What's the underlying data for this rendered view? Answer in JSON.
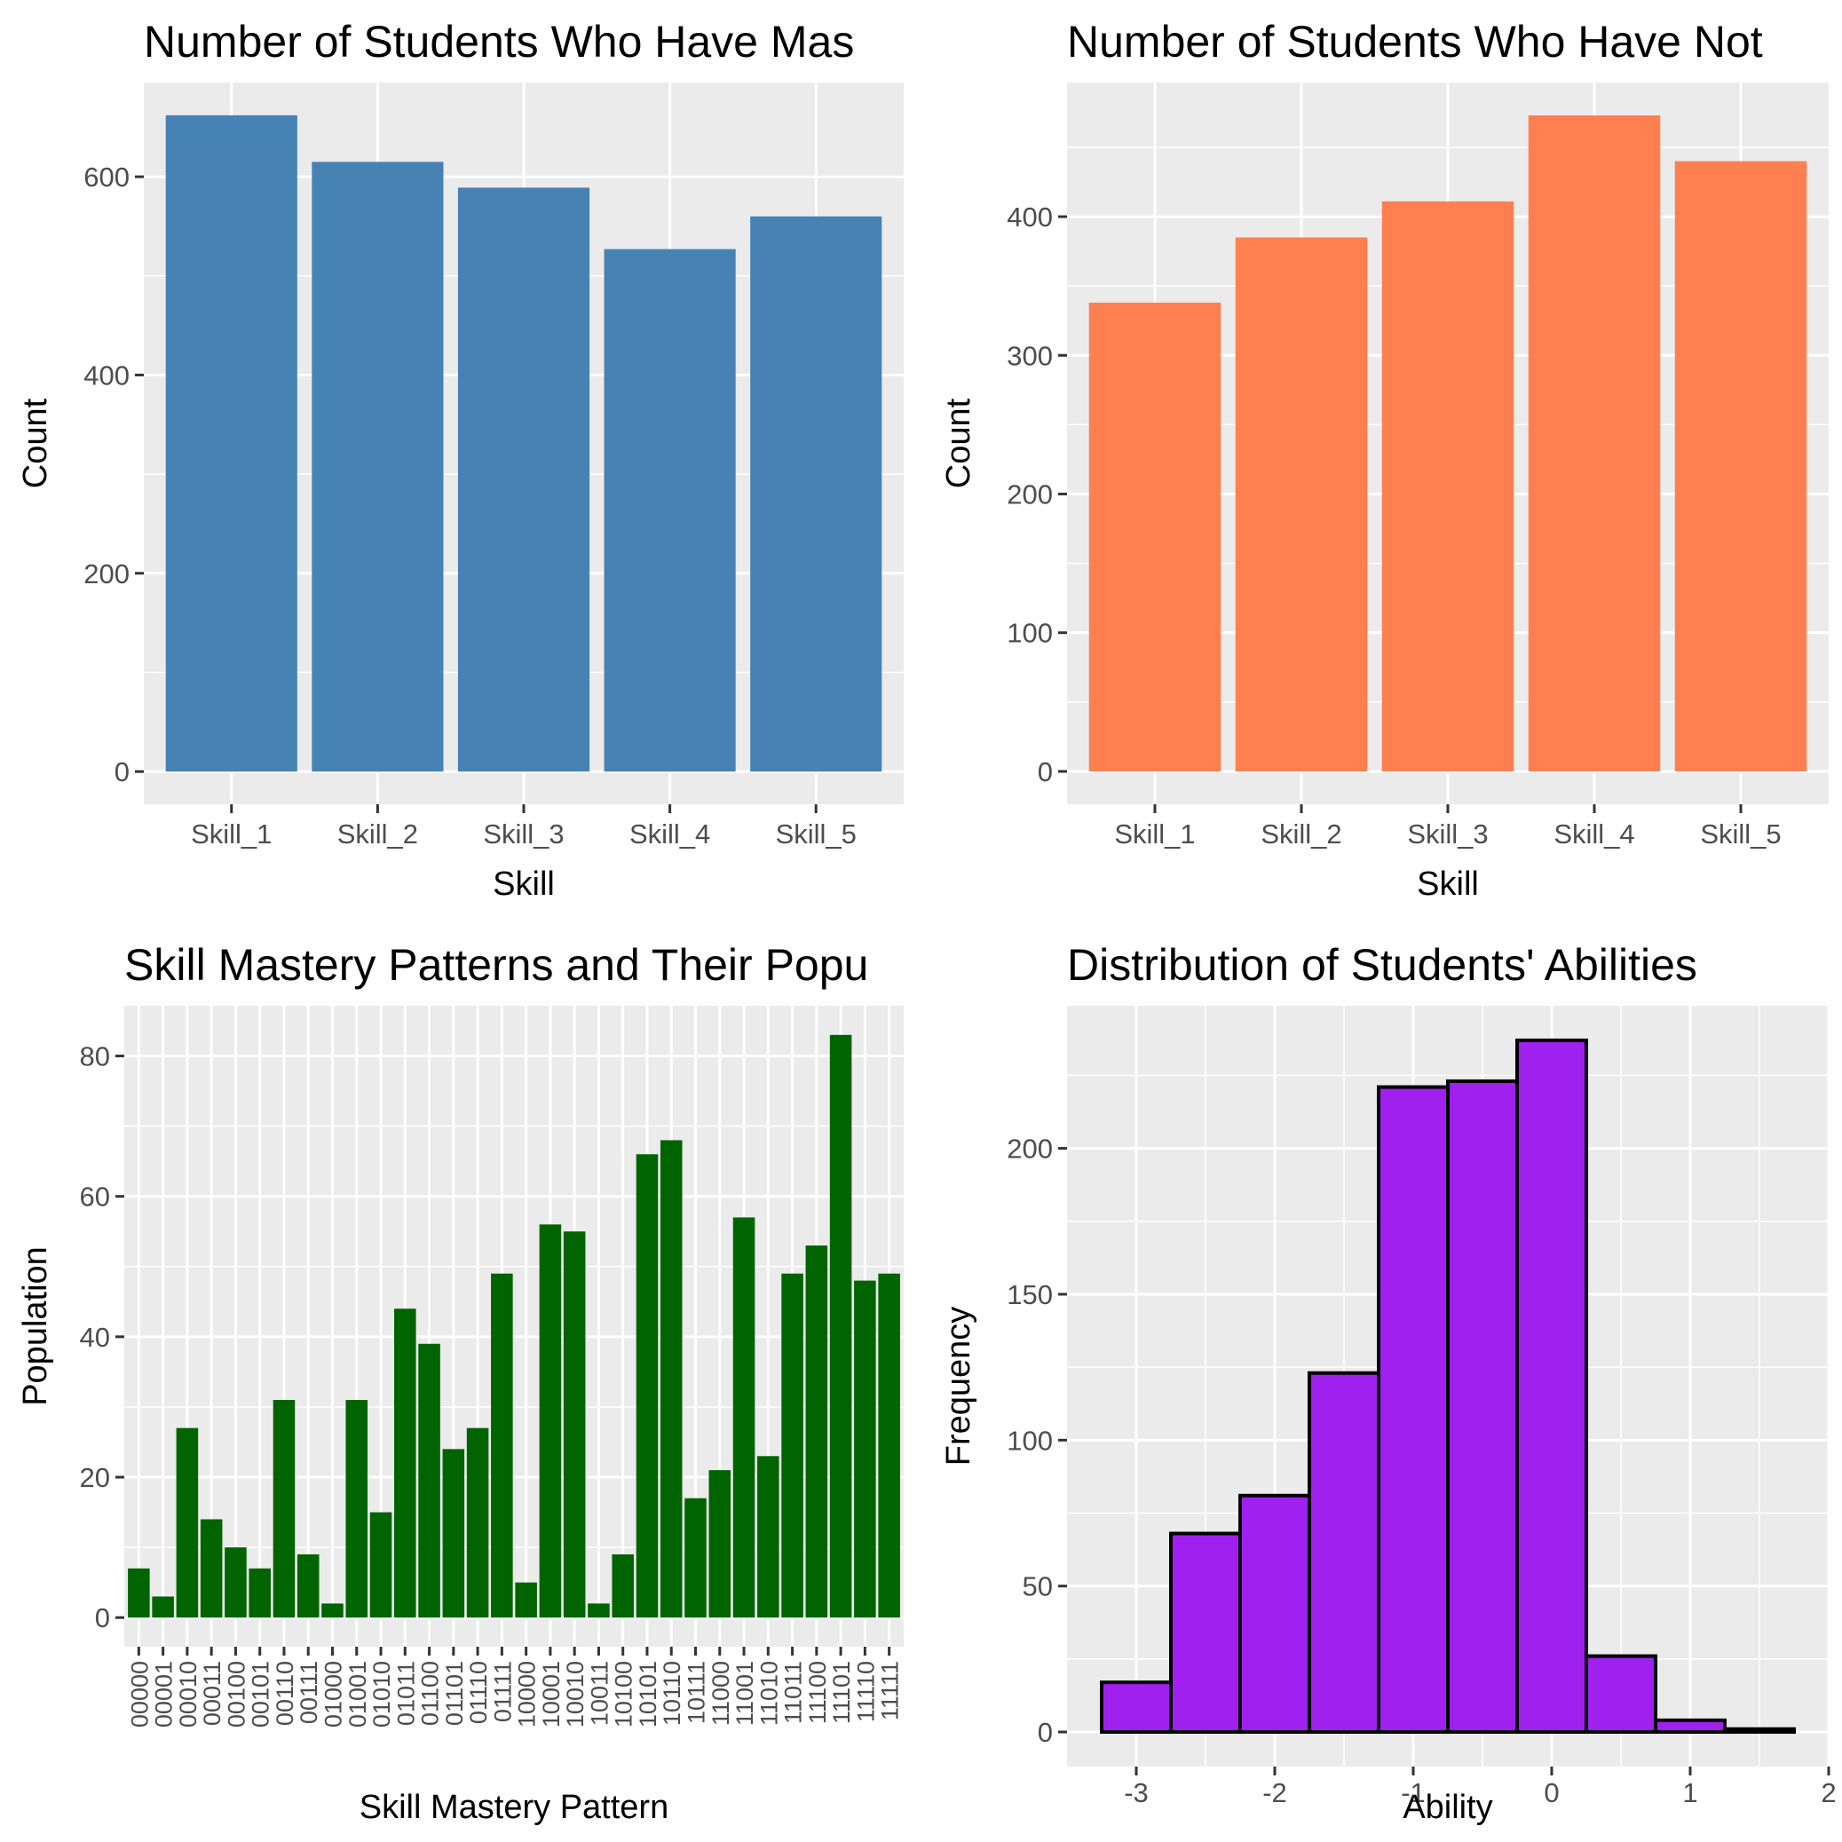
{
  "chart_data": [
    {
      "type": "bar",
      "title": "Number of Students Who Have Mas",
      "xlabel": "Skill",
      "ylabel": "Count",
      "categories": [
        "Skill_1",
        "Skill_2",
        "Skill_3",
        "Skill_4",
        "Skill_5"
      ],
      "values": [
        662,
        615,
        589,
        527,
        560
      ],
      "ylim": [
        -33,
        695
      ],
      "yticks": [
        0,
        200,
        400,
        600
      ],
      "ytick_labels": [
        "0",
        "200",
        "400",
        "600"
      ],
      "color": "#4682b4"
    },
    {
      "type": "bar",
      "title": "Number of Students Who Have Not",
      "xlabel": "Skill",
      "ylabel": "Count",
      "categories": [
        "Skill_1",
        "Skill_2",
        "Skill_3",
        "Skill_4",
        "Skill_5"
      ],
      "values": [
        338,
        385,
        411,
        473,
        440
      ],
      "ylim": [
        -23.7,
        496.7
      ],
      "yticks": [
        0,
        100,
        200,
        300,
        400
      ],
      "ytick_labels": [
        "0",
        "100",
        "200",
        "300",
        "400"
      ],
      "color": "#ff7f50"
    },
    {
      "type": "bar",
      "title": "Skill Mastery Patterns and Their Popu",
      "xlabel": "Skill Mastery Pattern",
      "ylabel": "Population",
      "categories": [
        "00000",
        "00001",
        "00010",
        "00011",
        "00100",
        "00101",
        "00110",
        "00111",
        "01000",
        "01001",
        "01010",
        "01011",
        "01100",
        "01101",
        "01110",
        "01111",
        "10000",
        "10001",
        "10010",
        "10011",
        "10100",
        "10101",
        "10110",
        "10111",
        "11000",
        "11001",
        "11010",
        "11011",
        "11100",
        "11101",
        "11110",
        "11111"
      ],
      "values": [
        7,
        3,
        27,
        14,
        10,
        7,
        31,
        9,
        2,
        31,
        15,
        44,
        39,
        24,
        27,
        49,
        5,
        56,
        55,
        2,
        9,
        66,
        68,
        17,
        21,
        57,
        23,
        49,
        53,
        83,
        48,
        49
      ],
      "ylim": [
        -4.15,
        87.15
      ],
      "yticks": [
        0,
        20,
        40,
        60,
        80
      ],
      "ytick_labels": [
        "0",
        "20",
        "40",
        "60",
        "80"
      ],
      "color": "#006400"
    },
    {
      "type": "histogram",
      "title": "Distribution of Students' Abilities",
      "xlabel": "Ability",
      "ylabel": "Frequency",
      "bin_edges": [
        -3.25,
        -2.75,
        -2.25,
        -1.75,
        -1.25,
        -0.75,
        -0.25,
        0.25,
        0.75,
        1.25,
        1.75
      ],
      "values": [
        17,
        68,
        81,
        123,
        221,
        223,
        237,
        26,
        4,
        1
      ],
      "xlim": [
        -3.5,
        2.0
      ],
      "ylim": [
        -11.85,
        248.85
      ],
      "xticks": [
        -3,
        -2,
        -1,
        0,
        1,
        2
      ],
      "xtick_labels": [
        "-3",
        "-2",
        "-1",
        "0",
        "1",
        "2"
      ],
      "yticks": [
        0,
        50,
        100,
        150,
        200
      ],
      "ytick_labels": [
        "0",
        "50",
        "100",
        "150",
        "200"
      ],
      "color": "#a020f0",
      "edge_color": "#000000"
    }
  ]
}
